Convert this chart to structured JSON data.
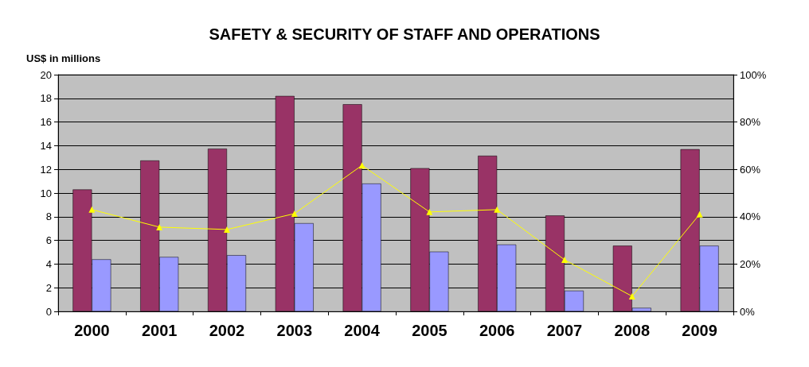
{
  "chart_data": {
    "type": "bar",
    "title": "SAFETY & SECURITY OF STAFF AND OPERATIONS",
    "ylabel": "US$ in millions",
    "categories": [
      "2000",
      "2001",
      "2002",
      "2003",
      "2004",
      "2005",
      "2006",
      "2007",
      "2008",
      "2009"
    ],
    "series": [
      {
        "color": "#993366",
        "values": [
          10.3,
          12.75,
          13.75,
          18.2,
          17.5,
          12.1,
          13.15,
          8.1,
          5.55,
          13.7
        ]
      },
      {
        "color": "#9999ff",
        "values": [
          4.4,
          4.6,
          4.75,
          7.45,
          10.8,
          5.05,
          5.65,
          1.75,
          0.3,
          5.55
        ]
      },
      {
        "type": "line",
        "axis": "y2",
        "color": "#ffff00",
        "marker": "triangle",
        "values": [
          43,
          35.6,
          34.6,
          41.3,
          61.7,
          42,
          43,
          21.8,
          6.4,
          41
        ]
      }
    ],
    "ylim": [
      0,
      20
    ],
    "yticks": [
      0,
      2,
      4,
      6,
      8,
      10,
      12,
      14,
      16,
      18,
      20
    ],
    "y2lim": [
      0,
      100
    ],
    "y2ticks": [
      {
        "value": 0,
        "label": "0%"
      },
      {
        "value": 20,
        "label": "20%"
      },
      {
        "value": 40,
        "label": "40%"
      },
      {
        "value": 60,
        "label": "60%"
      },
      {
        "value": 80,
        "label": "80%"
      },
      {
        "value": 100,
        "label": "100%"
      }
    ],
    "grid": "y"
  }
}
